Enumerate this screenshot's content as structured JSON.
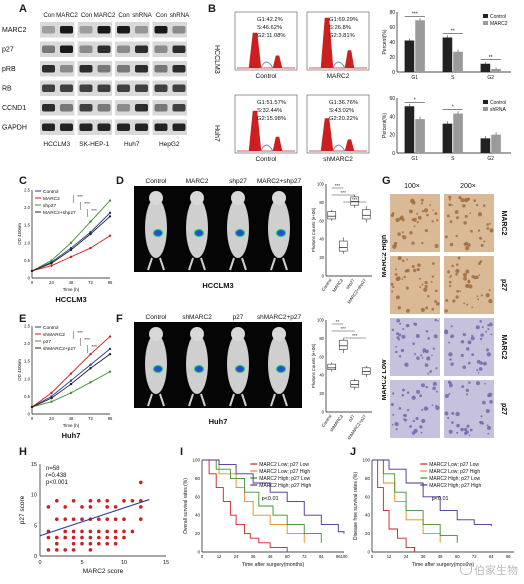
{
  "panel_letters": [
    "A",
    "B",
    "C",
    "D",
    "E",
    "F",
    "G",
    "H",
    "I",
    "J"
  ],
  "colors": {
    "red": "#cc1f1f",
    "blue": "#2a3a9c",
    "dark": "#222222",
    "grey": "#9a9a9a",
    "green": "#3f8f2f",
    "orange": "#e58a1f",
    "purple": "#4b2e91",
    "ihc_brown": "#a06a3c",
    "ihc_blue": "#6f6aa8"
  },
  "panel_a": {
    "columns": [
      {
        "group": "HCCLM3",
        "lanes": [
          "Con",
          "MARC2"
        ]
      },
      {
        "group": "SK-HEP-1",
        "lanes": [
          "Con",
          "MARC2"
        ]
      },
      {
        "group": "Huh7",
        "lanes": [
          "Con",
          "shRNA"
        ]
      },
      {
        "group": "HepG2",
        "lanes": [
          "Con",
          "shRNA"
        ]
      }
    ],
    "rows": [
      "MARC2",
      "p27",
      "pRB",
      "RB",
      "CCND1",
      "GAPDH"
    ]
  },
  "panel_b": {
    "top": [
      {
        "label": "Control",
        "g1": "G1:42.2%",
        "s": "S:46.62%",
        "g2": "G2:11.08%"
      },
      {
        "label": "MARC2",
        "g1": "G1:69.29%",
        "s": "S:26.8%",
        "g2": "G2:3.81%"
      }
    ],
    "bottom": [
      {
        "label": "Control",
        "g1": "G1:51.57%",
        "s": "S:32.44%",
        "g2": "G2:15.98%"
      },
      {
        "label": "shMARC2",
        "g1": "G1:36.76%",
        "s": "S:43.02%",
        "g2": "G2:20.22%"
      }
    ],
    "row_labels": [
      "HCCLM3",
      "Huh7"
    ]
  },
  "chart_data": [
    {
      "id": "B-top-bars",
      "type": "bar",
      "categories": [
        "G1",
        "S",
        "G2"
      ],
      "series": [
        {
          "name": "Control",
          "values": [
            42,
            46,
            11
          ],
          "errors": [
            1.5,
            1.5,
            1
          ]
        },
        {
          "name": "MARC2",
          "values": [
            69,
            27,
            4
          ],
          "errors": [
            1.5,
            1.5,
            0.8
          ]
        }
      ],
      "ylabel": "Percent(%)",
      "ylim": [
        0,
        80
      ],
      "yticks": [
        "0",
        "20",
        "40",
        "60",
        "80"
      ],
      "sig": [
        "***",
        "**",
        "**"
      ],
      "legend": "top-right"
    },
    {
      "id": "B-bottom-bars",
      "type": "bar",
      "categories": [
        "G1",
        "S",
        "G2"
      ],
      "series": [
        {
          "name": "Control",
          "values": [
            51,
            32,
            16
          ],
          "errors": [
            1.5,
            1.5,
            1.5
          ]
        },
        {
          "name": "shRNA",
          "values": [
            37,
            43,
            20
          ],
          "errors": [
            1.5,
            1.5,
            1.5
          ]
        }
      ],
      "ylabel": "Percent(%)",
      "ylim": [
        0,
        60
      ],
      "yticks": [
        "0",
        "20",
        "40",
        "60"
      ],
      "sig": [
        "*",
        "*",
        ""
      ],
      "legend": "top-right"
    },
    {
      "id": "C",
      "type": "line",
      "title": "HCCLM3",
      "x": [
        0,
        24,
        48,
        72,
        96
      ],
      "xticks": [
        "0",
        "24",
        "48",
        "72",
        "96"
      ],
      "xlabel": "Time (h)",
      "ylabel": "OD 450nm",
      "ylim": [
        0,
        2.5
      ],
      "yticks": [
        "0",
        "0.5",
        "1.0",
        "1.5",
        "2.0",
        "2.5"
      ],
      "series": [
        {
          "name": "Control",
          "values": [
            0.2,
            0.45,
            0.85,
            1.3,
            1.85
          ]
        },
        {
          "name": "MARC2",
          "values": [
            0.2,
            0.35,
            0.6,
            0.85,
            1.2
          ]
        },
        {
          "name": "shp27",
          "values": [
            0.2,
            0.5,
            1.0,
            1.6,
            2.2
          ]
        },
        {
          "name": "MARC2+shp27",
          "values": [
            0.2,
            0.42,
            0.8,
            1.25,
            1.75
          ]
        }
      ],
      "sig": [
        "***",
        "***",
        "***"
      ]
    },
    {
      "id": "D",
      "type": "box",
      "ylabel": "Photons Counts (e+06)",
      "yticks": [
        "0",
        "20",
        "40",
        "60",
        "80",
        "100"
      ],
      "ylim": [
        0,
        100
      ],
      "categories": [
        "Control",
        "MARC2",
        "shp27",
        "MARC2+shp27"
      ],
      "boxes": [
        {
          "min": 60,
          "q1": 62,
          "median": 65,
          "q3": 70,
          "max": 72
        },
        {
          "min": 24,
          "q1": 27,
          "median": 31,
          "q3": 38,
          "max": 42
        },
        {
          "min": 74,
          "q1": 77,
          "median": 81,
          "q3": 86,
          "max": 88
        },
        {
          "min": 58,
          "q1": 62,
          "median": 66,
          "q3": 72,
          "max": 76
        }
      ],
      "sig": [
        "***",
        "***",
        "***"
      ]
    },
    {
      "id": "E",
      "type": "line",
      "title": "Huh7",
      "x": [
        0,
        24,
        48,
        72,
        96
      ],
      "xticks": [
        "0",
        "24",
        "48",
        "72",
        "96"
      ],
      "xlabel": "Time (h)",
      "ylabel": "OD 450nm",
      "ylim": [
        0,
        2.5
      ],
      "yticks": [
        "0",
        "0.5",
        "1.0",
        "1.5",
        "2.0",
        "2.5"
      ],
      "series": [
        {
          "name": "Control",
          "values": [
            0.2,
            0.5,
            0.95,
            1.4,
            1.85
          ]
        },
        {
          "name": "shMARC2",
          "values": [
            0.2,
            0.6,
            1.15,
            1.7,
            2.2
          ]
        },
        {
          "name": "p27",
          "values": [
            0.2,
            0.35,
            0.6,
            0.9,
            1.2
          ]
        },
        {
          "name": "shMARC2+p27",
          "values": [
            0.2,
            0.45,
            0.85,
            1.3,
            1.7
          ]
        }
      ],
      "sig": [
        "***",
        "***",
        "***"
      ]
    },
    {
      "id": "F",
      "type": "box",
      "ylabel": "Photons Counts (e+06)",
      "yticks": [
        "0",
        "20",
        "40",
        "60",
        "80",
        "100"
      ],
      "ylim": [
        0,
        100
      ],
      "categories": [
        "Control",
        "shMARC2",
        "p27",
        "shMARC2+p27"
      ],
      "boxes": [
        {
          "min": 44,
          "q1": 46,
          "median": 48,
          "q3": 52,
          "max": 54
        },
        {
          "min": 64,
          "q1": 68,
          "median": 72,
          "q3": 78,
          "max": 80
        },
        {
          "min": 24,
          "q1": 27,
          "median": 30,
          "q3": 34,
          "max": 36
        },
        {
          "min": 38,
          "q1": 41,
          "median": 44,
          "q3": 48,
          "max": 50
        }
      ],
      "sig": [
        "**",
        "***",
        "***"
      ]
    },
    {
      "id": "H",
      "type": "scatter",
      "xlabel": "MARC2 score",
      "ylabel": "p27 score",
      "xlim": [
        0,
        15
      ],
      "ylim": [
        0,
        15
      ],
      "xticks": [
        "0",
        "5",
        "10",
        "15"
      ],
      "yticks": [
        "0",
        "5",
        "10",
        "15"
      ],
      "annotation": [
        "n=58",
        "r=0.438",
        "p<0.001"
      ],
      "points": [
        [
          1,
          1
        ],
        [
          1,
          4
        ],
        [
          1,
          8
        ],
        [
          2,
          2
        ],
        [
          2,
          6
        ],
        [
          2,
          3
        ],
        [
          2,
          9
        ],
        [
          3,
          1
        ],
        [
          3,
          4
        ],
        [
          3,
          6
        ],
        [
          3,
          8
        ],
        [
          4,
          2
        ],
        [
          4,
          4
        ],
        [
          4,
          6
        ],
        [
          4,
          9
        ],
        [
          4,
          3
        ],
        [
          5,
          2
        ],
        [
          5,
          4
        ],
        [
          5,
          6
        ],
        [
          5,
          8
        ],
        [
          6,
          1
        ],
        [
          6,
          3
        ],
        [
          6,
          4
        ],
        [
          6,
          6
        ],
        [
          6,
          8
        ],
        [
          6,
          9
        ],
        [
          7,
          2
        ],
        [
          7,
          4
        ],
        [
          7,
          6
        ],
        [
          7,
          9
        ],
        [
          8,
          3
        ],
        [
          8,
          4
        ],
        [
          8,
          6
        ],
        [
          8,
          8
        ],
        [
          8,
          9
        ],
        [
          9,
          2
        ],
        [
          9,
          4
        ],
        [
          9,
          6
        ],
        [
          9,
          8
        ],
        [
          10,
          4
        ],
        [
          10,
          6
        ],
        [
          10,
          9
        ],
        [
          10,
          3
        ],
        [
          12,
          6
        ],
        [
          12,
          9
        ],
        [
          12,
          8
        ],
        [
          12,
          12
        ],
        [
          3,
          3
        ],
        [
          5,
          3
        ],
        [
          7,
          3
        ],
        [
          9,
          3
        ],
        [
          11,
          4
        ],
        [
          11,
          9
        ],
        [
          1,
          3
        ],
        [
          2,
          1
        ],
        [
          4,
          1
        ],
        [
          6,
          2
        ],
        [
          8,
          2
        ]
      ],
      "fit": [
        [
          0,
          3.3
        ],
        [
          13,
          9.2
        ]
      ]
    },
    {
      "id": "I",
      "type": "line",
      "ylabel": "Overall survival rates (%)",
      "xlabel": "Time after surgery(months)",
      "xlim": [
        0,
        100
      ],
      "ylim": [
        0,
        100
      ],
      "xticks": [
        "0",
        "12",
        "24",
        "36",
        "48",
        "60",
        "72",
        "84",
        "96",
        "100"
      ],
      "yticks": [
        "0",
        "20",
        "40",
        "60",
        "80",
        "100"
      ],
      "annotation": "p<0.01",
      "series": [
        {
          "name": "MARC2 Low; p27 Low",
          "x": [
            0,
            5,
            10,
            15,
            20,
            24,
            30,
            34,
            40,
            48,
            60
          ],
          "values": [
            100,
            85,
            70,
            55,
            40,
            30,
            20,
            15,
            10,
            5,
            0
          ]
        },
        {
          "name": "MARC2 Low; p27 High",
          "x": [
            0,
            12,
            24,
            30,
            36,
            48,
            60,
            72
          ],
          "values": [
            100,
            85,
            70,
            55,
            40,
            30,
            20,
            10
          ]
        },
        {
          "name": "MARC2 High; p27 Low",
          "x": [
            0,
            10,
            20,
            30,
            40,
            50,
            60,
            72,
            84
          ],
          "values": [
            100,
            90,
            80,
            65,
            50,
            40,
            30,
            20,
            10
          ]
        },
        {
          "name": "MARC2 High; p27 High",
          "x": [
            0,
            12,
            24,
            36,
            48,
            60,
            72,
            84,
            96,
            100
          ],
          "values": [
            100,
            95,
            85,
            75,
            65,
            55,
            40,
            30,
            22,
            20
          ]
        }
      ]
    },
    {
      "id": "J",
      "type": "line",
      "ylabel": "Disease free survival rates (%)",
      "xlabel": "Time after surgery(months)",
      "xlim": [
        0,
        100
      ],
      "ylim": [
        0,
        100
      ],
      "xticks": [
        "0",
        "12",
        "24",
        "36",
        "48",
        "60",
        "72",
        "84",
        "96"
      ],
      "yticks": [
        "0",
        "20",
        "40",
        "60",
        "80",
        "100"
      ],
      "annotation": "p<0.01",
      "series": [
        {
          "name": "MARC2 Low; p27 Low",
          "x": [
            0,
            4,
            8,
            12,
            18,
            24,
            30
          ],
          "values": [
            100,
            70,
            45,
            25,
            15,
            5,
            0
          ]
        },
        {
          "name": "MARC2 Low; p27 High",
          "x": [
            0,
            8,
            16,
            24,
            36,
            48
          ],
          "values": [
            100,
            75,
            55,
            35,
            20,
            10
          ]
        },
        {
          "name": "MARC2 High; p27 Low",
          "x": [
            0,
            8,
            16,
            24,
            36,
            48,
            60
          ],
          "values": [
            100,
            85,
            65,
            45,
            30,
            18,
            10
          ]
        },
        {
          "name": "MARC2 High; p27 High",
          "x": [
            0,
            12,
            24,
            36,
            48,
            60,
            72,
            84
          ],
          "values": [
            100,
            90,
            75,
            60,
            45,
            35,
            30,
            28
          ]
        }
      ]
    }
  ],
  "panel_d": {
    "labels": [
      "Control",
      "MARC2",
      "shp27",
      "MARC2+shp27"
    ],
    "caption": "HCCLM3"
  },
  "panel_f": {
    "labels": [
      "Control",
      "shMARC2",
      "p27",
      "shMARC2+p27"
    ],
    "caption": "Huh7"
  },
  "panel_g": {
    "col_labels": [
      "100×",
      "200×"
    ],
    "group_labels": [
      "MARC2 High",
      "MARC2 Low"
    ],
    "row_labels": [
      "MARC2",
      "p27",
      "MARC2",
      "p27"
    ]
  },
  "watermark": "伯家生物"
}
